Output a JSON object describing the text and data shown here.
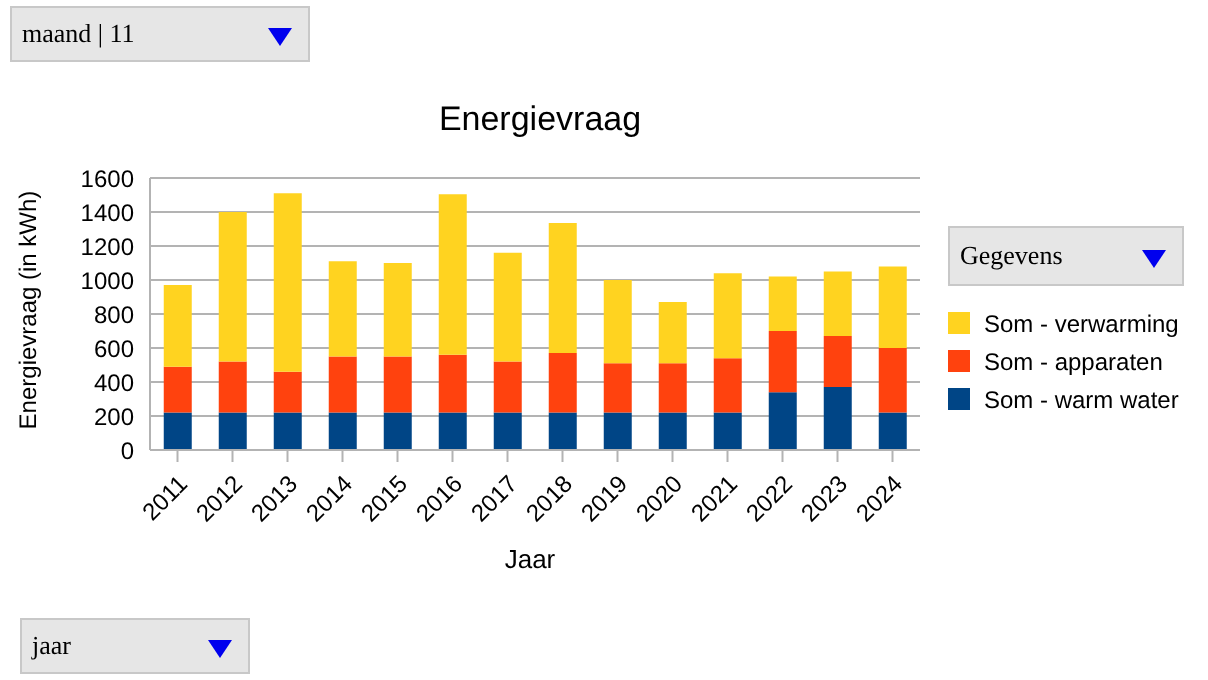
{
  "chart_data": {
    "type": "bar",
    "title": "Energievraag",
    "xlabel": "Jaar",
    "ylabel": "Energievraag (in kWh)",
    "categories": [
      "2011",
      "2012",
      "2013",
      "2014",
      "2015",
      "2016",
      "2017",
      "2018",
      "2019",
      "2020",
      "2021",
      "2022",
      "2023",
      "2024"
    ],
    "stacked": true,
    "series": [
      {
        "name": "Som - warm water",
        "color": "#004586",
        "values": [
          220,
          220,
          220,
          220,
          220,
          220,
          220,
          220,
          220,
          220,
          220,
          340,
          370,
          220
        ]
      },
      {
        "name": "Som - apparaten",
        "color": "#ff420e",
        "values": [
          270,
          300,
          240,
          330,
          330,
          340,
          300,
          350,
          290,
          290,
          320,
          360,
          300,
          380
        ]
      },
      {
        "name": "Som - verwarming",
        "color": "#ffd320",
        "values": [
          480,
          880,
          1050,
          560,
          550,
          945,
          640,
          765,
          490,
          360,
          500,
          320,
          380,
          480
        ]
      }
    ],
    "ylim": [
      0,
      1600
    ],
    "yticks": [
      0,
      200,
      400,
      600,
      800,
      1000,
      1200,
      1400,
      1600
    ],
    "grid": "y",
    "legend": "right",
    "annotations": [
      "maand | 11",
      "Gegevens",
      "jaar"
    ]
  }
}
